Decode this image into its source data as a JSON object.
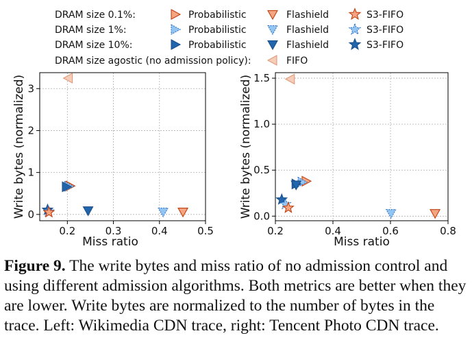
{
  "legend": {
    "rows": [
      {
        "label": "DRAM size 0.1%:",
        "items": [
          {
            "marker": "right",
            "fill": "#f4a582",
            "stroke": "#c04010",
            "dash": false,
            "label": "Probabilistic"
          },
          {
            "marker": "down",
            "fill": "#f4a582",
            "stroke": "#c04010",
            "dash": false,
            "label": "Flashield"
          },
          {
            "marker": "star",
            "fill": "#f4a582",
            "stroke": "#c04010",
            "dash": false,
            "label": "S3-FIFO"
          }
        ]
      },
      {
        "label": "DRAM size 1%:",
        "items": [
          {
            "marker": "right",
            "fill": "#92c5f0",
            "stroke": "#3070c8",
            "dash": true,
            "label": "Probabilistic"
          },
          {
            "marker": "down",
            "fill": "#92c5f0",
            "stroke": "#3070c8",
            "dash": true,
            "label": "Flashield"
          },
          {
            "marker": "star",
            "fill": "#92c5f0",
            "stroke": "#3070c8",
            "dash": true,
            "label": "S3-FIFO"
          }
        ]
      },
      {
        "label": "DRAM size 10%:",
        "items": [
          {
            "marker": "right",
            "fill": "#2166ac",
            "stroke": "#1a4f8a",
            "dash": false,
            "label": "Probabilistic"
          },
          {
            "marker": "down",
            "fill": "#2166ac",
            "stroke": "#1a4f8a",
            "dash": false,
            "label": "Flashield"
          },
          {
            "marker": "star",
            "fill": "#2166ac",
            "stroke": "#1a4f8a",
            "dash": false,
            "label": "S3-FIFO"
          }
        ]
      },
      {
        "label": "DRAM size agostic (no admission policy):",
        "items": [
          {
            "marker": "left",
            "fill": "#f5cdb8",
            "stroke": "#e09a7a",
            "dash": false,
            "label": "FIFO"
          }
        ]
      }
    ]
  },
  "chart_data": [
    {
      "type": "scatter",
      "xlabel": "Miss ratio",
      "ylabel": "Write bytes (normalized)",
      "xlim": [
        0.14,
        0.5
      ],
      "ylim": [
        -0.15,
        3.38
      ],
      "xticks": [
        0.2,
        0.3,
        0.4,
        0.5
      ],
      "xtick_labels": [
        "0.2",
        "0.3",
        "0.4",
        "0.5"
      ],
      "yticks": [
        0,
        1,
        2,
        3
      ],
      "ytick_labels": [
        "0",
        "1",
        "2",
        "3"
      ],
      "grid": true,
      "points": [
        {
          "series": "FIFO",
          "dram": "agnostic",
          "marker": "left",
          "x": 0.202,
          "y": 3.25
        },
        {
          "series": "Probabilistic",
          "dram": "0.1%",
          "marker": "right",
          "x": 0.206,
          "y": 0.68
        },
        {
          "series": "Probabilistic",
          "dram": "1%",
          "marker": "right",
          "x": 0.203,
          "y": 0.67
        },
        {
          "series": "Probabilistic",
          "dram": "10%",
          "marker": "right",
          "x": 0.198,
          "y": 0.66
        },
        {
          "series": "Flashield",
          "dram": "10%",
          "marker": "down",
          "x": 0.245,
          "y": 0.09
        },
        {
          "series": "Flashield",
          "dram": "1%",
          "marker": "down",
          "x": 0.408,
          "y": 0.06
        },
        {
          "series": "Flashield",
          "dram": "0.1%",
          "marker": "down",
          "x": 0.451,
          "y": 0.06
        },
        {
          "series": "S3-FIFO",
          "dram": "10%",
          "marker": "star",
          "x": 0.157,
          "y": 0.11
        },
        {
          "series": "S3-FIFO",
          "dram": "1%",
          "marker": "star",
          "x": 0.159,
          "y": 0.07
        },
        {
          "series": "S3-FIFO",
          "dram": "0.1%",
          "marker": "star",
          "x": 0.16,
          "y": 0.05
        }
      ]
    },
    {
      "type": "scatter",
      "xlabel": "Miss ratio",
      "ylabel": "Write bytes (normalized)",
      "xlim": [
        0.2,
        0.8
      ],
      "ylim": [
        -0.05,
        1.56
      ],
      "xticks": [
        0.2,
        0.4,
        0.6,
        0.8
      ],
      "xtick_labels": [
        "0.2",
        "0.4",
        "0.6",
        "0.8"
      ],
      "yticks": [
        0.0,
        0.5,
        1.0,
        1.5
      ],
      "ytick_labels": [
        "0.0",
        "0.5",
        "1.0",
        "1.5"
      ],
      "grid": true,
      "points": [
        {
          "series": "FIFO",
          "dram": "agnostic",
          "marker": "left",
          "x": 0.252,
          "y": 1.49
        },
        {
          "series": "Probabilistic",
          "dram": "0.1%",
          "marker": "right",
          "x": 0.307,
          "y": 0.38
        },
        {
          "series": "Probabilistic",
          "dram": "1%",
          "marker": "right",
          "x": 0.293,
          "y": 0.37
        },
        {
          "series": "Probabilistic",
          "dram": "10%",
          "marker": "right",
          "x": 0.272,
          "y": 0.35
        },
        {
          "series": "Flashield",
          "dram": "10%",
          "marker": "down",
          "x": 0.272,
          "y": 0.34
        },
        {
          "series": "Flashield",
          "dram": "1%",
          "marker": "down",
          "x": 0.602,
          "y": 0.03
        },
        {
          "series": "Flashield",
          "dram": "0.1%",
          "marker": "down",
          "x": 0.755,
          "y": 0.03
        },
        {
          "series": "S3-FIFO",
          "dram": "10%",
          "marker": "star",
          "x": 0.222,
          "y": 0.18
        },
        {
          "series": "S3-FIFO",
          "dram": "1%",
          "marker": "star",
          "x": 0.235,
          "y": 0.13
        },
        {
          "series": "S3-FIFO",
          "dram": "0.1%",
          "marker": "star",
          "x": 0.245,
          "y": 0.09
        }
      ]
    }
  ],
  "caption": {
    "label": "Figure 9.",
    "text": " The write bytes and miss ratio of no admission control and using different admission algorithms. Both metrics are better when they are lower. Write bytes are normalized to the number of bytes in the trace. Left: Wikimedia CDN trace, right: Tencent Photo CDN trace."
  }
}
